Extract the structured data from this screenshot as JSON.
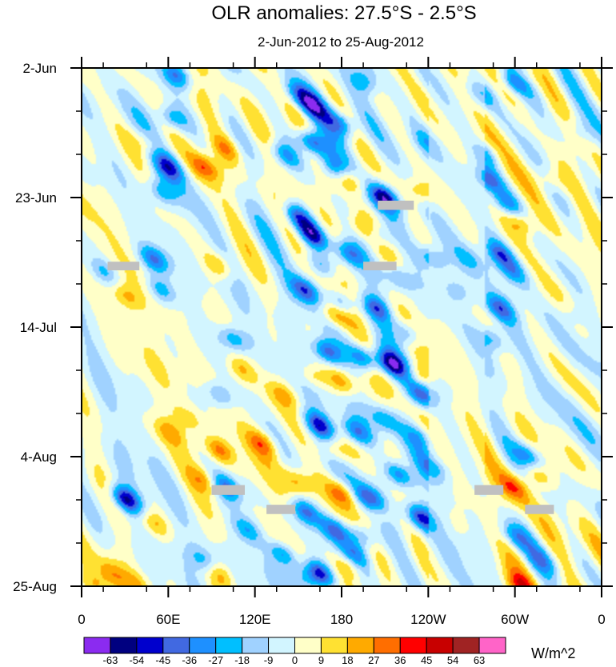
{
  "chart_data": {
    "type": "heatmap",
    "title": "OLR anomalies: 27.5°S - 2.5°S",
    "subtitle": "2-Jun-2012 to 25-Aug-2012",
    "xlabel": "",
    "ylabel": "",
    "x_ticks": [
      "0",
      "60E",
      "120E",
      "180",
      "120W",
      "60W",
      "0"
    ],
    "y_ticks": [
      "2-Jun",
      "23-Jun",
      "14-Jul",
      "4-Aug",
      "25-Aug"
    ],
    "colorbar": {
      "units": "W/m^2",
      "levels": [
        "-63",
        "-54",
        "-45",
        "-36",
        "-27",
        "-18",
        "-9",
        "0",
        "9",
        "18",
        "27",
        "36",
        "45",
        "54",
        "63"
      ],
      "colors": [
        "#8B2BF0",
        "#000080",
        "#0000CD",
        "#4169E1",
        "#1E90FF",
        "#00BFFF",
        "#A0D2FF",
        "#D2F5FF",
        "#FFFFC8",
        "#FFE132",
        "#FFAA00",
        "#FF6E00",
        "#FF0000",
        "#C80000",
        "#A02323",
        "#FF64C8"
      ]
    },
    "missing_color": "#C0C0C0",
    "features": [
      {
        "lon": 65,
        "day": 1,
        "value": -40
      },
      {
        "lon": 62,
        "day": 8,
        "value": -30
      },
      {
        "lon": 150,
        "day": 4,
        "value": -25
      },
      {
        "lon": 160,
        "day": 6,
        "value": -40
      },
      {
        "lon": 195,
        "day": 2,
        "value": -25
      },
      {
        "lon": 275,
        "day": 4,
        "value": -30
      },
      {
        "lon": 300,
        "day": 2,
        "value": -35
      },
      {
        "lon": 305,
        "day": 1,
        "value": 20
      },
      {
        "lon": 280,
        "day": 14,
        "value": -25
      },
      {
        "lon": 282,
        "day": 18,
        "value": -40
      },
      {
        "lon": 295,
        "day": 22,
        "value": -30
      },
      {
        "lon": 160,
        "day": 12,
        "value": -55
      },
      {
        "lon": 140,
        "day": 14,
        "value": -30
      },
      {
        "lon": 175,
        "day": 16,
        "value": -35
      },
      {
        "lon": 180,
        "day": 9,
        "value": -35
      },
      {
        "lon": 210,
        "day": 21,
        "value": -55
      },
      {
        "lon": 85,
        "day": 16,
        "value": 30
      },
      {
        "lon": 100,
        "day": 13,
        "value": 22
      },
      {
        "lon": 45,
        "day": 12,
        "value": 18
      },
      {
        "lon": 185,
        "day": 18,
        "value": 28
      },
      {
        "lon": 235,
        "day": 20,
        "value": 20
      },
      {
        "lon": 60,
        "day": 16,
        "value": -35
      },
      {
        "lon": 55,
        "day": 20,
        "value": -25
      },
      {
        "lon": 150,
        "day": 24,
        "value": -45
      },
      {
        "lon": 160,
        "day": 27,
        "value": -55
      },
      {
        "lon": 185,
        "day": 30,
        "value": -35
      },
      {
        "lon": 205,
        "day": 27,
        "value": -25
      },
      {
        "lon": 245,
        "day": 31,
        "value": -40
      },
      {
        "lon": 195,
        "day": 26,
        "value": 20
      },
      {
        "lon": 155,
        "day": 36,
        "value": -40
      },
      {
        "lon": 180,
        "day": 38,
        "value": -30
      },
      {
        "lon": 165,
        "day": 32,
        "value": -25
      },
      {
        "lon": 50,
        "day": 31,
        "value": -35
      },
      {
        "lon": 55,
        "day": 36,
        "value": -25
      },
      {
        "lon": 105,
        "day": 44,
        "value": -30
      },
      {
        "lon": 15,
        "day": 33,
        "value": -20
      },
      {
        "lon": 30,
        "day": 37,
        "value": 18
      },
      {
        "lon": 95,
        "day": 32,
        "value": 22
      },
      {
        "lon": 220,
        "day": 34,
        "value": -25
      },
      {
        "lon": 260,
        "day": 36,
        "value": -30
      },
      {
        "lon": 270,
        "day": 31,
        "value": -25
      },
      {
        "lon": 290,
        "day": 30,
        "value": -35
      },
      {
        "lon": 300,
        "day": 33,
        "value": -25
      },
      {
        "lon": 290,
        "day": 39,
        "value": -35
      },
      {
        "lon": 285,
        "day": 44,
        "value": -25
      },
      {
        "lon": 305,
        "day": 25,
        "value": 22
      },
      {
        "lon": 325,
        "day": 18,
        "value": 18
      },
      {
        "lon": 175,
        "day": 40,
        "value": 25
      },
      {
        "lon": 205,
        "day": 39,
        "value": -40
      },
      {
        "lon": 225,
        "day": 43,
        "value": -30
      },
      {
        "lon": 170,
        "day": 46,
        "value": -45
      },
      {
        "lon": 195,
        "day": 47,
        "value": -40
      },
      {
        "lon": 215,
        "day": 48,
        "value": -55
      },
      {
        "lon": 235,
        "day": 53,
        "value": -40
      },
      {
        "lon": 160,
        "day": 50,
        "value": 20
      },
      {
        "lon": 180,
        "day": 51,
        "value": 22
      },
      {
        "lon": 235,
        "day": 50,
        "value": 18
      },
      {
        "lon": 95,
        "day": 53,
        "value": -25
      },
      {
        "lon": 110,
        "day": 49,
        "value": 18
      },
      {
        "lon": 140,
        "day": 53,
        "value": 18
      },
      {
        "lon": 165,
        "day": 58,
        "value": -45
      },
      {
        "lon": 190,
        "day": 59,
        "value": -35
      },
      {
        "lon": 125,
        "day": 61,
        "value": 28
      },
      {
        "lon": 175,
        "day": 62,
        "value": 20
      },
      {
        "lon": 95,
        "day": 62,
        "value": 30
      },
      {
        "lon": 85,
        "day": 67,
        "value": 22
      },
      {
        "lon": 75,
        "day": 57,
        "value": 15
      },
      {
        "lon": 235,
        "day": 60,
        "value": -20
      },
      {
        "lon": 210,
        "day": 57,
        "value": -25
      },
      {
        "lon": 220,
        "day": 66,
        "value": -40
      },
      {
        "lon": 245,
        "day": 65,
        "value": -30
      },
      {
        "lon": 200,
        "day": 70,
        "value": -35
      },
      {
        "lon": 150,
        "day": 67,
        "value": 20
      },
      {
        "lon": 180,
        "day": 69,
        "value": 28
      },
      {
        "lon": 205,
        "day": 72,
        "value": 20
      },
      {
        "lon": 155,
        "day": 72,
        "value": -40
      },
      {
        "lon": 175,
        "day": 75,
        "value": -35
      },
      {
        "lon": 195,
        "day": 76,
        "value": -30
      },
      {
        "lon": 235,
        "day": 73,
        "value": -45
      },
      {
        "lon": 190,
        "day": 79,
        "value": -25
      },
      {
        "lon": 100,
        "day": 68,
        "value": -35
      },
      {
        "lon": 115,
        "day": 75,
        "value": -25
      },
      {
        "lon": 30,
        "day": 70,
        "value": -55
      },
      {
        "lon": 50,
        "day": 74,
        "value": 20
      },
      {
        "lon": 60,
        "day": 59,
        "value": 18
      },
      {
        "lon": 140,
        "day": 79,
        "value": -40
      },
      {
        "lon": 155,
        "day": 83,
        "value": -30
      },
      {
        "lon": 165,
        "day": 82,
        "value": -55
      },
      {
        "lon": 185,
        "day": 81,
        "value": 20
      },
      {
        "lon": 95,
        "day": 82,
        "value": 18
      },
      {
        "lon": 85,
        "day": 80,
        "value": -25
      },
      {
        "lon": 300,
        "day": 68,
        "value": 28
      },
      {
        "lon": 310,
        "day": 63,
        "value": -30
      },
      {
        "lon": 315,
        "day": 66,
        "value": 22
      },
      {
        "lon": 300,
        "day": 76,
        "value": -25
      },
      {
        "lon": 305,
        "day": 84,
        "value": 30
      },
      {
        "lon": 320,
        "day": 80,
        "value": -20
      },
      {
        "lon": 270,
        "day": 78,
        "value": -20
      },
      {
        "lon": 10,
        "day": 84,
        "value": 20
      },
      {
        "lon": 20,
        "day": 82,
        "value": 18
      },
      {
        "lon": 40,
        "day": 84,
        "value": 15
      },
      {
        "lon": 240,
        "day": 12,
        "value": -15
      },
      {
        "lon": 250,
        "day": 52,
        "value": -15
      },
      {
        "lon": 340,
        "day": 40,
        "value": -12
      },
      {
        "lon": 345,
        "day": 10,
        "value": -12
      }
    ],
    "missing_regions": [
      {
        "lon": [
          205,
          230
        ],
        "day": [
          21.5,
          23.0
        ]
      },
      {
        "lon": [
          18,
          40
        ],
        "day": [
          31.4,
          32.8
        ]
      },
      {
        "lon": [
          195,
          218
        ],
        "day": [
          31.4,
          32.8
        ]
      },
      {
        "lon": [
          90,
          113
        ],
        "day": [
          67.6,
          69.2
        ]
      },
      {
        "lon": [
          272,
          292
        ],
        "day": [
          67.6,
          69.2
        ]
      },
      {
        "lon": [
          128,
          148
        ],
        "day": [
          70.8,
          72.3
        ]
      },
      {
        "lon": [
          307,
          327
        ],
        "day": [
          70.8,
          72.3
        ]
      }
    ]
  }
}
